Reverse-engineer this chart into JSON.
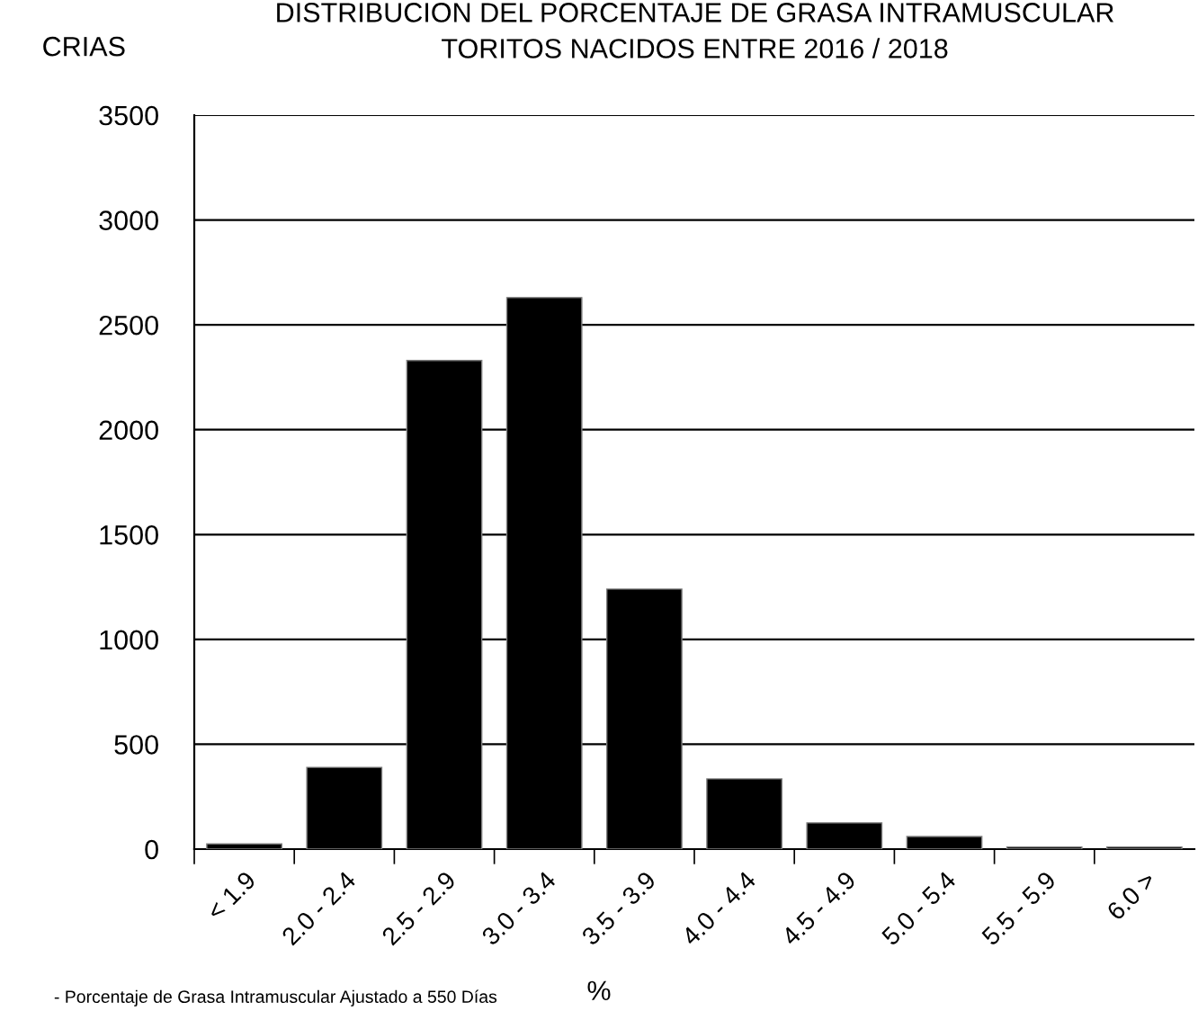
{
  "chart_data": {
    "type": "bar",
    "title": "DISTRIBUCION DEL PORCENTAJE DE GRASA INTRAMUSCULAR",
    "subtitle": "TORITOS NACIDOS ENTRE 2016 / 2018",
    "ylabel": "CRIAS",
    "xlabel": "%",
    "annotations": [
      "- Porcentaje de Grasa Intramuscular Ajustado a 550 Días"
    ],
    "categories": [
      "< 1.9",
      "2.0 - 2.4",
      "2.5 - 2.9",
      "3.0 - 3.4",
      "3.5 - 3.9",
      "4.0 - 4.4",
      "4.5 - 4.9",
      "5.0 - 5.4",
      "5.5 - 5.9",
      "6.0 >"
    ],
    "values": [
      25,
      390,
      2330,
      2630,
      1240,
      335,
      125,
      60,
      10,
      10
    ],
    "color": "#000000",
    "ylim": [
      0,
      3500
    ],
    "yticks": [
      0,
      500,
      1000,
      1500,
      2000,
      2500,
      3000,
      3500
    ],
    "grid": "y",
    "legend": false
  }
}
